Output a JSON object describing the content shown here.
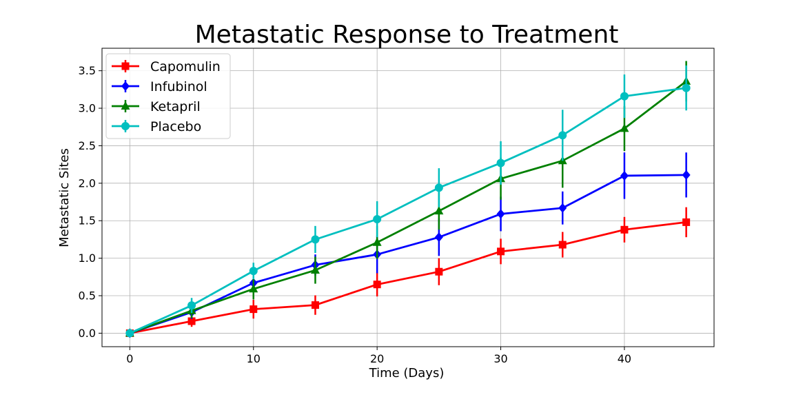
{
  "chart_data": {
    "type": "line",
    "title": "Metastatic Response to Treatment",
    "xlabel": "Time (Days)",
    "ylabel": "Metastatic Sites",
    "xlim": [
      -2.25,
      47.25
    ],
    "ylim": [
      -0.18,
      3.8
    ],
    "x_ticks": [
      0,
      10,
      20,
      30,
      40
    ],
    "x_tick_labels": [
      "0",
      "10",
      "20",
      "30",
      "40"
    ],
    "y_ticks": [
      0.0,
      0.5,
      1.0,
      1.5,
      2.0,
      2.5,
      3.0,
      3.5
    ],
    "y_tick_labels": [
      "0.0",
      "0.5",
      "1.0",
      "1.5",
      "2.0",
      "2.5",
      "3.0",
      "3.5"
    ],
    "grid": true,
    "legend_position": "top-left",
    "x": [
      0,
      5,
      10,
      15,
      20,
      25,
      30,
      35,
      40,
      45
    ],
    "series": [
      {
        "name": "Capomulin",
        "color": "#ff0000",
        "marker": "square",
        "values": [
          0.0,
          0.16,
          0.32,
          0.375,
          0.65,
          0.82,
          1.09,
          1.18,
          1.38,
          1.48
        ],
        "errors": [
          0.0,
          0.075,
          0.125,
          0.13,
          0.16,
          0.18,
          0.17,
          0.17,
          0.17,
          0.2
        ]
      },
      {
        "name": "Infubinol",
        "color": "#0000ff",
        "marker": "diamond",
        "values": [
          0.0,
          0.28,
          0.67,
          0.91,
          1.05,
          1.28,
          1.59,
          1.67,
          2.1,
          2.11
        ],
        "errors": [
          0.0,
          0.09,
          0.1,
          0.14,
          0.25,
          0.25,
          0.23,
          0.22,
          0.31,
          0.3
        ]
      },
      {
        "name": "Ketapril",
        "color": "#008000",
        "marker": "triangle",
        "values": [
          0.0,
          0.3,
          0.59,
          0.84,
          1.21,
          1.63,
          2.06,
          2.3,
          2.73,
          3.36
        ],
        "errors": [
          0.0,
          0.1,
          0.14,
          0.18,
          0.22,
          0.25,
          0.28,
          0.36,
          0.3,
          0.27
        ]
      },
      {
        "name": "Placebo",
        "color": "#00bfbf",
        "marker": "circle",
        "values": [
          0.0,
          0.37,
          0.83,
          1.25,
          1.52,
          1.94,
          2.27,
          2.64,
          3.16,
          3.27
        ],
        "errors": [
          0.0,
          0.1,
          0.11,
          0.18,
          0.24,
          0.26,
          0.29,
          0.34,
          0.29,
          0.3
        ]
      }
    ]
  }
}
